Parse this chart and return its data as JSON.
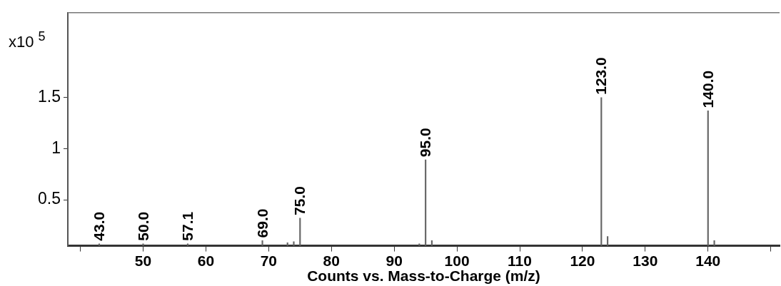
{
  "chart_data": {
    "type": "bar",
    "xlabel": "Counts vs. Mass-to-Charge (m/z)",
    "ylabel": "x10$^{5}$",
    "x": [
      43,
      50,
      57.1,
      69,
      73,
      74,
      75,
      94,
      95,
      96,
      123,
      124,
      140,
      141
    ],
    "values": [
      0.07,
      0.07,
      0.07,
      0.1,
      0.08,
      0.09,
      0.32,
      0.07,
      0.89,
      0.1,
      1.5,
      0.14,
      1.37,
      0.1
    ],
    "annotations": [
      {
        "text": "43.0",
        "x": 43,
        "y": 0.07
      },
      {
        "text": "50.0",
        "x": 50,
        "y": 0.07
      },
      {
        "text": "57.1",
        "x": 57.1,
        "y": 0.07
      },
      {
        "text": "69.0",
        "x": 69,
        "y": 0.1
      },
      {
        "text": "75.0",
        "x": 75,
        "y": 0.32
      },
      {
        "text": "95.0",
        "x": 95,
        "y": 0.89
      },
      {
        "text": "123.0",
        "x": 123,
        "y": 1.5
      },
      {
        "text": "140.0",
        "x": 140,
        "y": 1.37
      }
    ],
    "color": "#666666",
    "xlim": [
      38,
      151.4
    ],
    "xticks": [
      {
        "value": 40,
        "label": null
      },
      50,
      60,
      70,
      80,
      90,
      100,
      110,
      120,
      130,
      140,
      {
        "value": 150,
        "label": null
      }
    ],
    "ylim": [
      0.05,
      2.33
    ],
    "yticks": [
      0.5,
      1,
      1.5
    ],
    "grid": false,
    "legend": false
  }
}
